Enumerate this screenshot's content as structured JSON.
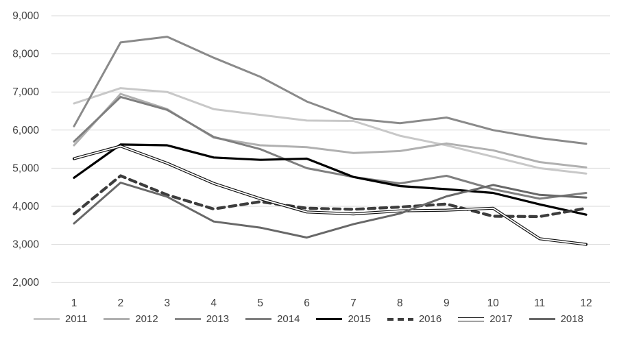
{
  "chart_data": {
    "type": "line",
    "title": "",
    "xlabel": "",
    "ylabel": "",
    "x": [
      1,
      2,
      3,
      4,
      5,
      6,
      7,
      8,
      9,
      10,
      11,
      12
    ],
    "xtick_labels": [
      "1",
      "2",
      "3",
      "4",
      "5",
      "6",
      "7",
      "8",
      "9",
      "10",
      "11",
      "12"
    ],
    "ylim": [
      2000,
      9000
    ],
    "ytick_step": 1000,
    "ytick_labels": [
      "2,000",
      "3,000",
      "4,000",
      "5,000",
      "6,000",
      "7,000",
      "8,000",
      "9,000"
    ],
    "grid": true,
    "gridline_color": "#d9d9d9",
    "axis_label_color": "#404040",
    "legend_position": "bottom",
    "series": [
      {
        "name": "2011",
        "color": "#c8c8c8",
        "style": "solid",
        "width": 3,
        "values": [
          6700,
          7100,
          7000,
          6550,
          6400,
          6250,
          6240,
          5850,
          5600,
          5300,
          5000,
          4860
        ]
      },
      {
        "name": "2012",
        "color": "#b0b0b0",
        "style": "solid",
        "width": 3,
        "values": [
          5600,
          6950,
          6550,
          5800,
          5600,
          5550,
          5400,
          5450,
          5650,
          5470,
          5160,
          5020
        ]
      },
      {
        "name": "2013",
        "color": "#8a8a8a",
        "style": "solid",
        "width": 3,
        "values": [
          6100,
          8300,
          8450,
          7900,
          7400,
          6750,
          6300,
          6180,
          6330,
          6000,
          5790,
          5640
        ]
      },
      {
        "name": "2014",
        "color": "#7f7f7f",
        "style": "solid",
        "width": 3,
        "values": [
          5700,
          6870,
          6530,
          5820,
          5500,
          5000,
          4770,
          4600,
          4800,
          4450,
          4200,
          4350
        ]
      },
      {
        "name": "2015",
        "color": "#000000",
        "style": "solid",
        "width": 3.2,
        "values": [
          4750,
          5620,
          5600,
          5280,
          5220,
          5250,
          4770,
          4530,
          4450,
          4350,
          4050,
          3780
        ]
      },
      {
        "name": "2016",
        "color": "#3d3d3d",
        "style": "dashed",
        "width": 4.2,
        "values": [
          3800,
          4800,
          4300,
          3930,
          4120,
          3950,
          3920,
          3980,
          4060,
          3740,
          3730,
          3950
        ]
      },
      {
        "name": "2017",
        "color": "#141414",
        "style": "double",
        "width": 4.2,
        "values": [
          5250,
          5580,
          5130,
          4600,
          4200,
          3850,
          3800,
          3880,
          3900,
          3950,
          3150,
          3000
        ]
      },
      {
        "name": "2018",
        "color": "#686868",
        "style": "solid",
        "width": 3,
        "values": [
          3550,
          4620,
          4250,
          3600,
          3440,
          3180,
          3530,
          3810,
          4260,
          4560,
          4300,
          4230
        ]
      }
    ]
  }
}
